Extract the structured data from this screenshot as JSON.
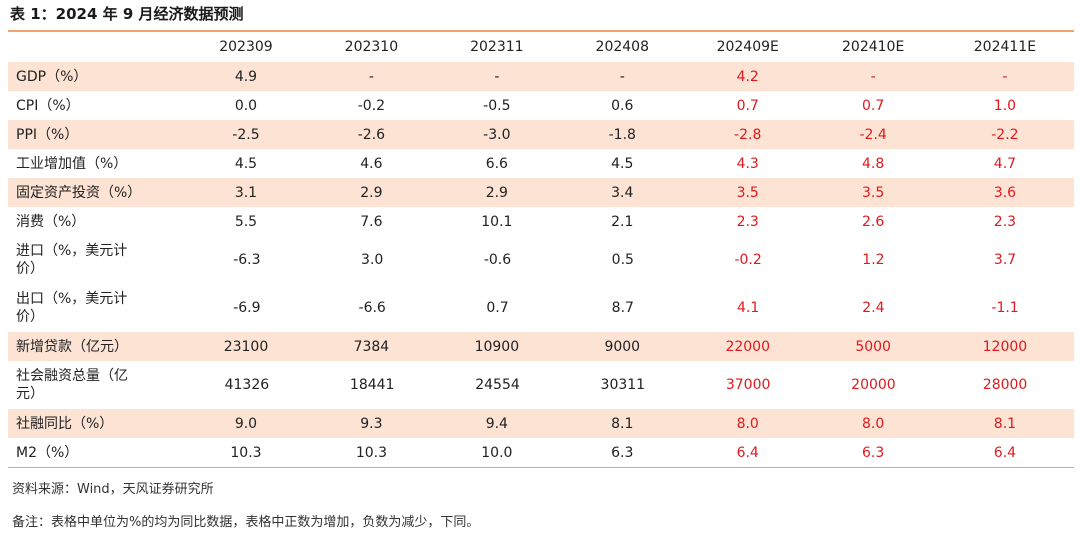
{
  "title": "表 1：2024 年 9 月经济数据预测",
  "columns": [
    "",
    "202309",
    "202310",
    "202311",
    "202408",
    "202409E",
    "202410E",
    "202411E"
  ],
  "rows": [
    {
      "label": "GDP（%）",
      "values": [
        "4.9",
        "-",
        "-",
        "-",
        "4.2",
        "-",
        "-"
      ]
    },
    {
      "label": "CPI（%）",
      "values": [
        "0.0",
        "-0.2",
        "-0.5",
        "0.6",
        "0.7",
        "0.7",
        "1.0"
      ]
    },
    {
      "label": "PPI（%）",
      "values": [
        "-2.5",
        "-2.6",
        "-3.0",
        "-1.8",
        "-2.8",
        "-2.4",
        "-2.2"
      ]
    },
    {
      "label": "工业增加值（%）",
      "values": [
        "4.5",
        "4.6",
        "6.6",
        "4.5",
        "4.3",
        "4.8",
        "4.7"
      ]
    },
    {
      "label": "固定资产投资（%）",
      "values": [
        "3.1",
        "2.9",
        "2.9",
        "3.4",
        "3.5",
        "3.5",
        "3.6"
      ]
    },
    {
      "label": "消费（%）",
      "values": [
        "5.5",
        "7.6",
        "10.1",
        "2.1",
        "2.3",
        "2.6",
        "2.3"
      ]
    },
    {
      "label": "进口（%，美元计价）",
      "values": [
        "-6.3",
        "3.0",
        "-0.6",
        "0.5",
        "-0.2",
        "1.2",
        "3.7"
      ]
    },
    {
      "label": "出口（%，美元计价）",
      "values": [
        "-6.9",
        "-6.6",
        "0.7",
        "8.7",
        "4.1",
        "2.4",
        "-1.1"
      ]
    },
    {
      "label": "新增贷款（亿元）",
      "values": [
        "23100",
        "7384",
        "10900",
        "9000",
        "22000",
        "5000",
        "12000"
      ]
    },
    {
      "label": "社会融资总量（亿元）",
      "values": [
        "41326",
        "18441",
        "24554",
        "30311",
        "37000",
        "20000",
        "28000"
      ]
    },
    {
      "label": "社融同比（%）",
      "values": [
        "9.0",
        "9.3",
        "9.4",
        "8.1",
        "8.0",
        "8.0",
        "8.1"
      ]
    },
    {
      "label": "M2（%）",
      "values": [
        "10.3",
        "10.3",
        "10.0",
        "6.3",
        "6.4",
        "6.3",
        "6.4"
      ]
    }
  ],
  "source": "资料来源：Wind，天风证券研究所",
  "note": "备注：表格中单位为%的均为同比数据，表格中正数为增加，负数为减少，下同。",
  "colors": {
    "accent": "#f0a36e",
    "shade": "#fce3d4",
    "estimate": "#e0191e"
  }
}
